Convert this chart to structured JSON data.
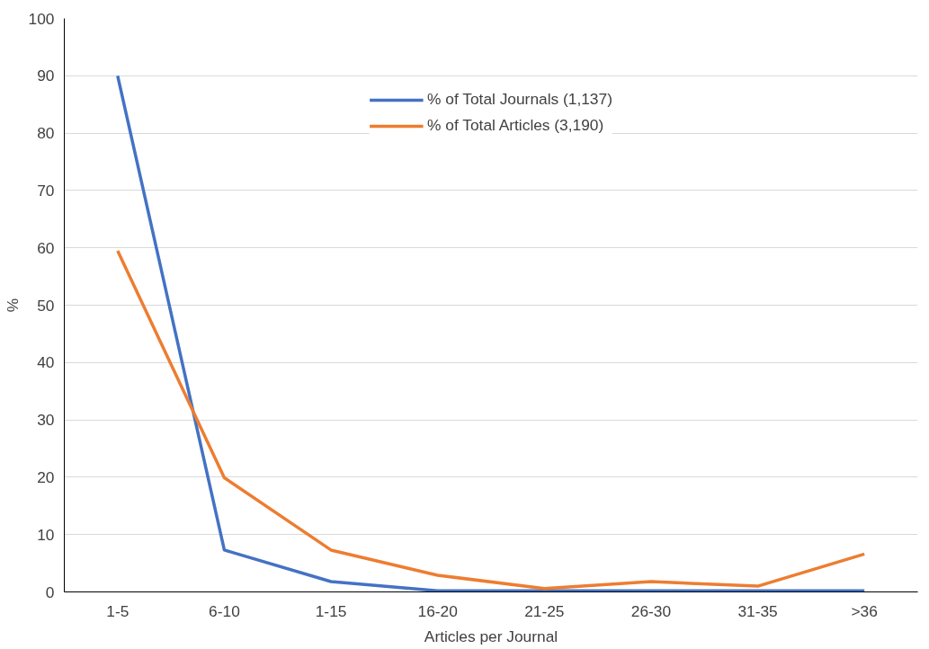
{
  "chart_data": {
    "type": "line",
    "xlabel": "Articles per Journal",
    "ylabel": "%",
    "categories": [
      "1-5",
      "6-10",
      "1-15",
      "16-20",
      "21-25",
      "26-30",
      "31-35",
      ">36"
    ],
    "series": [
      {
        "name": "% of Total Journals (1,137)",
        "color": "#4472c4",
        "values": [
          90,
          7.3,
          1.8,
          0.2,
          0.2,
          0.2,
          0.2,
          0.2
        ]
      },
      {
        "name": "% of Total Articles (3,190)",
        "color": "#ed7d31",
        "values": [
          59.5,
          19.9,
          7.3,
          2.9,
          0.6,
          1.8,
          1.0,
          6.6
        ]
      }
    ],
    "ylim": [
      0,
      100
    ],
    "yticks": [
      0,
      10,
      20,
      30,
      40,
      50,
      60,
      70,
      80,
      90,
      100
    ],
    "grid": "y",
    "legend": "top",
    "marker": "none",
    "line_style": "solid"
  }
}
